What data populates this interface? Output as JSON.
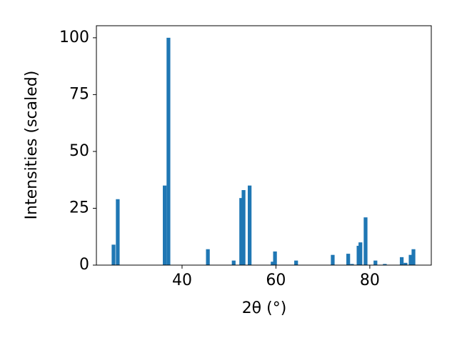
{
  "chart_data": {
    "type": "bar",
    "x_label": "2θ (°)",
    "y_label": "Intensities (scaled)",
    "color": "#1f77b4",
    "x": [
      25.4,
      26.3,
      36.3,
      37.1,
      45.5,
      51.0,
      52.6,
      53.1,
      54.4,
      59.3,
      59.8,
      64.3,
      72.1,
      75.4,
      76.2,
      77.6,
      78.0,
      79.1,
      81.2,
      83.2,
      86.8,
      87.6,
      88.7,
      89.3
    ],
    "values": [
      9,
      29,
      35,
      100,
      7,
      2,
      29.5,
      33,
      35,
      1.5,
      6,
      2,
      4.5,
      5,
      0.5,
      8.5,
      10,
      21,
      2,
      0.5,
      3.5,
      1,
      4.5,
      7
    ],
    "xlim": [
      21.75,
      93.1
    ],
    "ylim": [
      0,
      105.3
    ],
    "xticks": [
      40,
      60,
      80
    ],
    "yticks": [
      0,
      25,
      50,
      75,
      100
    ]
  }
}
